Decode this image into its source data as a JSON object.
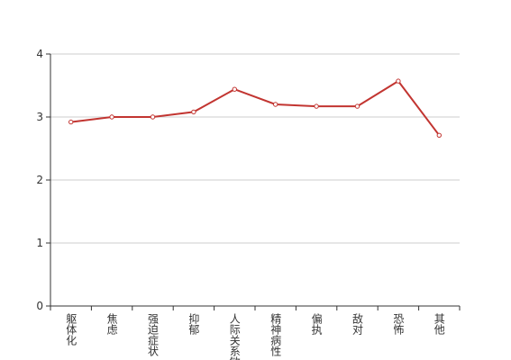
{
  "chart_data": {
    "type": "line",
    "categories": [
      "躯体化",
      "焦虑",
      "强迫症状",
      "抑郁",
      "人际关系敏感",
      "精神病性",
      "偏执",
      "敌对",
      "恐怖",
      "其他"
    ],
    "values": [
      2.92,
      3.0,
      3.0,
      3.08,
      3.44,
      3.2,
      3.17,
      3.17,
      3.57,
      2.71
    ],
    "color": "#c23531",
    "ylim": [
      0,
      4
    ],
    "yticks": [
      0,
      1,
      2,
      3,
      4
    ],
    "grid": true
  }
}
